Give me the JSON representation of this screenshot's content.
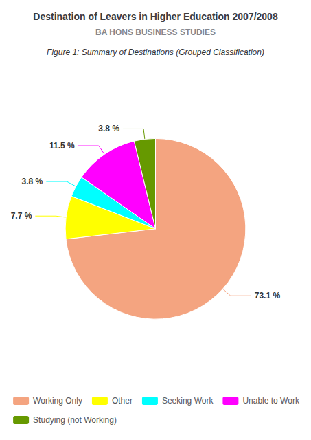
{
  "chart_data": {
    "type": "pie",
    "title": "Destination of Leavers in Higher Education 2007/2008",
    "subtitle": "BA HONS BUSINESS STUDIES",
    "annotations": [
      "Figure 1: Summary of Destinations (Grouped Classification)"
    ],
    "categories": [
      "Working Only",
      "Other",
      "Seeking Work",
      "Unable to Work",
      "Studying (not Working)"
    ],
    "values": [
      73.1,
      7.7,
      3.8,
      11.5,
      3.8
    ],
    "value_labels": [
      "73.1 %",
      "7.7 %",
      "3.8 %",
      "11.5 %",
      "3.8 %"
    ],
    "colors": [
      "#F4A480",
      "#FFFF00",
      "#00FFFF",
      "#FF00FF",
      "#669900"
    ],
    "data_labels": true,
    "legend": "bottom"
  }
}
